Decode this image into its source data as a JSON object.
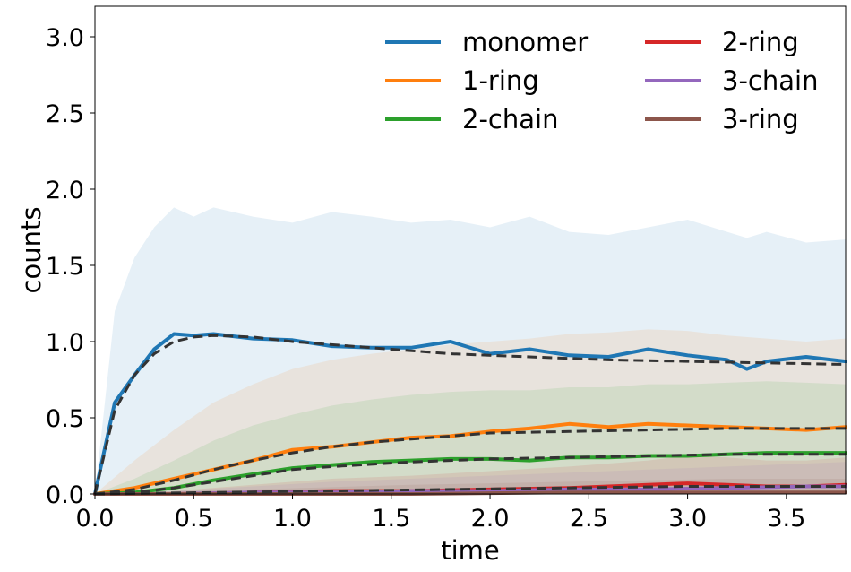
{
  "chart_data": {
    "type": "line",
    "xlabel": "time",
    "ylabel": "counts",
    "xlim": [
      0,
      3.8
    ],
    "ylim": [
      0,
      3.2
    ],
    "xticks": [
      0.0,
      0.5,
      1.0,
      1.5,
      2.0,
      2.5,
      3.0,
      3.5
    ],
    "yticks": [
      0.0,
      0.5,
      1.0,
      1.5,
      2.0,
      2.5,
      3.0
    ],
    "xtick_labels": [
      "0.0",
      "0.5",
      "1.0",
      "1.5",
      "2.0",
      "2.5",
      "3.0",
      "3.5"
    ],
    "ytick_labels": [
      "0.0",
      "0.5",
      "1.0",
      "1.5",
      "2.0",
      "2.5",
      "3.0"
    ],
    "grid": false,
    "legend_position": "top-right",
    "legend_columns": 2,
    "series": [
      {
        "name": "monomer",
        "color": "#1f77b4",
        "x": [
          0,
          0.1,
          0.2,
          0.3,
          0.4,
          0.5,
          0.6,
          0.8,
          1.0,
          1.2,
          1.4,
          1.6,
          1.8,
          2.0,
          2.2,
          2.4,
          2.6,
          2.8,
          3.0,
          3.2,
          3.3,
          3.4,
          3.6,
          3.8
        ],
        "y": [
          0,
          0.6,
          0.78,
          0.95,
          1.05,
          1.04,
          1.05,
          1.02,
          1.01,
          0.97,
          0.96,
          0.96,
          1.0,
          0.92,
          0.95,
          0.91,
          0.9,
          0.95,
          0.91,
          0.88,
          0.82,
          0.87,
          0.9,
          0.87
        ],
        "band_upper": [
          0,
          1.2,
          1.55,
          1.75,
          1.88,
          1.82,
          1.88,
          1.82,
          1.78,
          1.85,
          1.82,
          1.78,
          1.8,
          1.75,
          1.82,
          1.72,
          1.7,
          1.75,
          1.8,
          1.72,
          1.68,
          1.72,
          1.65,
          1.67
        ],
        "band_lower": [
          0,
          0,
          0,
          0,
          0,
          0,
          0,
          0,
          0,
          0,
          0,
          0,
          0,
          0,
          0,
          0,
          0,
          0,
          0,
          0,
          0,
          0,
          0,
          0
        ]
      },
      {
        "name": "1-ring",
        "color": "#ff7f0e",
        "x": [
          0,
          0.2,
          0.4,
          0.6,
          0.8,
          1.0,
          1.2,
          1.4,
          1.6,
          1.8,
          2.0,
          2.2,
          2.4,
          2.6,
          2.8,
          3.0,
          3.2,
          3.4,
          3.6,
          3.8
        ],
        "y": [
          0,
          0.04,
          0.1,
          0.16,
          0.22,
          0.29,
          0.31,
          0.34,
          0.37,
          0.38,
          0.41,
          0.43,
          0.46,
          0.44,
          0.46,
          0.45,
          0.44,
          0.43,
          0.42,
          0.44
        ],
        "band_upper": [
          0,
          0.22,
          0.42,
          0.6,
          0.72,
          0.82,
          0.88,
          0.92,
          0.95,
          0.98,
          1.0,
          1.02,
          1.05,
          1.06,
          1.08,
          1.07,
          1.04,
          1.02,
          1.0,
          1.02
        ],
        "band_lower": [
          0,
          0,
          0,
          0,
          0,
          0,
          0,
          0,
          0,
          0,
          0,
          0,
          0,
          0,
          0,
          0,
          0,
          0,
          0,
          0
        ]
      },
      {
        "name": "2-chain",
        "color": "#2ca02c",
        "x": [
          0,
          0.2,
          0.4,
          0.6,
          0.8,
          1.0,
          1.2,
          1.4,
          1.6,
          1.8,
          2.0,
          2.2,
          2.4,
          2.6,
          2.8,
          3.0,
          3.2,
          3.4,
          3.6,
          3.8
        ],
        "y": [
          0,
          0.01,
          0.04,
          0.09,
          0.13,
          0.17,
          0.19,
          0.21,
          0.22,
          0.23,
          0.23,
          0.22,
          0.24,
          0.24,
          0.25,
          0.25,
          0.26,
          0.27,
          0.27,
          0.27
        ],
        "band_upper": [
          0,
          0.1,
          0.22,
          0.35,
          0.45,
          0.52,
          0.58,
          0.62,
          0.65,
          0.67,
          0.68,
          0.68,
          0.7,
          0.7,
          0.72,
          0.72,
          0.73,
          0.74,
          0.73,
          0.72
        ],
        "band_lower": [
          0,
          0,
          0,
          0,
          0,
          0,
          0,
          0,
          0,
          0,
          0,
          0,
          0,
          0,
          0,
          0,
          0,
          0,
          0,
          0
        ]
      },
      {
        "name": "2-ring",
        "color": "#d62728",
        "x": [
          0,
          0.4,
          0.8,
          1.2,
          1.6,
          2.0,
          2.4,
          2.8,
          3.0,
          3.2,
          3.4,
          3.6,
          3.8
        ],
        "y": [
          0,
          0.0,
          0.01,
          0.02,
          0.02,
          0.03,
          0.04,
          0.06,
          0.07,
          0.06,
          0.05,
          0.05,
          0.06
        ],
        "band_upper": [
          0,
          0.02,
          0.06,
          0.1,
          0.12,
          0.15,
          0.18,
          0.22,
          0.25,
          0.24,
          0.22,
          0.22,
          0.24
        ],
        "band_lower": [
          0,
          0,
          0,
          0,
          0,
          0,
          0,
          0,
          0,
          0,
          0,
          0,
          0
        ]
      },
      {
        "name": "3-chain",
        "color": "#9467bd",
        "x": [
          0,
          0.4,
          0.8,
          1.2,
          1.6,
          2.0,
          2.4,
          2.8,
          3.2,
          3.6,
          3.8
        ],
        "y": [
          0,
          0.0,
          0.01,
          0.01,
          0.02,
          0.02,
          0.03,
          0.03,
          0.04,
          0.05,
          0.05
        ],
        "band_upper": [
          0,
          0.02,
          0.05,
          0.08,
          0.1,
          0.12,
          0.14,
          0.16,
          0.18,
          0.2,
          0.21
        ],
        "band_lower": [
          0,
          0,
          0,
          0,
          0,
          0,
          0,
          0,
          0,
          0,
          0
        ]
      },
      {
        "name": "3-ring",
        "color": "#8c564b",
        "x": [
          0,
          0.8,
          1.6,
          2.4,
          3.2,
          3.8
        ],
        "y": [
          0,
          0.0,
          0.0,
          0.01,
          0.01,
          0.01
        ],
        "band_upper": [
          0,
          0.03,
          0.06,
          0.08,
          0.1,
          0.1
        ],
        "band_lower": [
          0,
          0,
          0,
          0,
          0,
          0
        ]
      }
    ],
    "reference_curves": {
      "color": "#333333",
      "style": "dashed",
      "curves": [
        {
          "x": [
            0,
            0.1,
            0.2,
            0.3,
            0.4,
            0.5,
            0.6,
            0.8,
            1.0,
            1.4,
            1.8,
            2.2,
            2.6,
            3.0,
            3.4,
            3.8
          ],
          "y": [
            0,
            0.55,
            0.78,
            0.92,
            1.0,
            1.03,
            1.04,
            1.03,
            1.0,
            0.96,
            0.92,
            0.9,
            0.88,
            0.87,
            0.86,
            0.85
          ]
        },
        {
          "x": [
            0,
            0.2,
            0.4,
            0.6,
            0.8,
            1.0,
            1.2,
            1.4,
            1.6,
            1.8,
            2.0,
            2.4,
            2.8,
            3.2,
            3.6,
            3.8
          ],
          "y": [
            0,
            0.03,
            0.09,
            0.16,
            0.22,
            0.27,
            0.31,
            0.34,
            0.36,
            0.38,
            0.4,
            0.41,
            0.42,
            0.43,
            0.43,
            0.43
          ]
        },
        {
          "x": [
            0,
            0.2,
            0.4,
            0.6,
            0.8,
            1.0,
            1.2,
            1.6,
            2.0,
            2.4,
            2.8,
            3.2,
            3.6,
            3.8
          ],
          "y": [
            0,
            0.01,
            0.04,
            0.08,
            0.12,
            0.16,
            0.18,
            0.21,
            0.23,
            0.24,
            0.25,
            0.26,
            0.26,
            0.26
          ]
        },
        {
          "x": [
            0,
            0.6,
            1.2,
            1.8,
            2.4,
            3.0,
            3.6,
            3.8
          ],
          "y": [
            0,
            0.01,
            0.02,
            0.03,
            0.04,
            0.05,
            0.05,
            0.05
          ]
        }
      ]
    }
  }
}
